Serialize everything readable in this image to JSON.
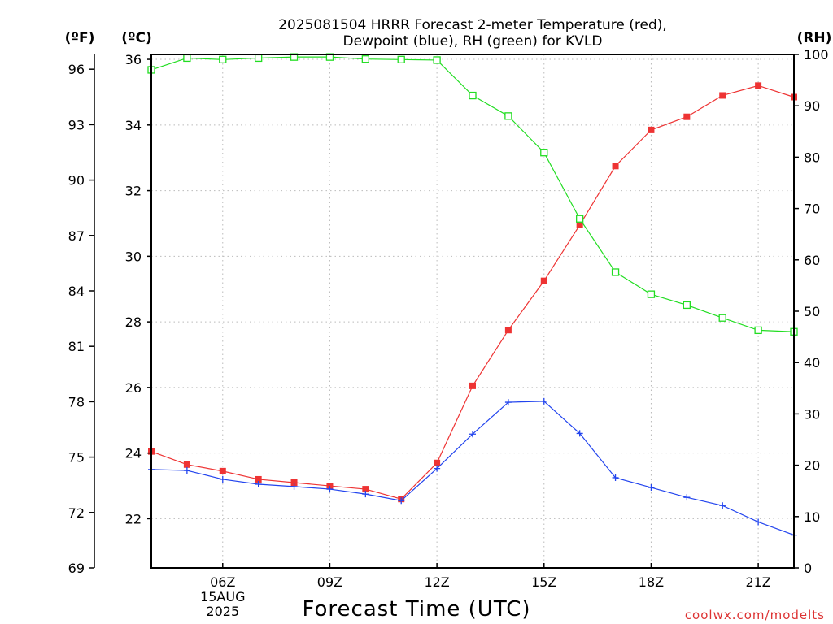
{
  "chart_data": {
    "type": "line",
    "title_line1": "2025081504 HRRR Forecast 2-meter Temperature (red),",
    "title_line2": "Dewpoint (blue), RH (green) for KVLD",
    "xlabel": "Forecast Time (UTC)",
    "credit": "coolwx.com/modelts",
    "colors": {
      "temperature": "#ee3333",
      "dewpoint": "#2244ee",
      "rh": "#22dd22"
    },
    "x": [
      4,
      5,
      6,
      7,
      8,
      9,
      10,
      11,
      12,
      13,
      14,
      15,
      16,
      17,
      18,
      19,
      20,
      21,
      22
    ],
    "xlim": [
      4,
      22
    ],
    "x_ticks": [
      {
        "x": 6,
        "lines": [
          "06Z",
          "15AUG",
          "2025"
        ]
      },
      {
        "x": 9,
        "lines": [
          "09Z"
        ]
      },
      {
        "x": 12,
        "lines": [
          "12Z"
        ]
      },
      {
        "x": 15,
        "lines": [
          "15Z"
        ]
      },
      {
        "x": 18,
        "lines": [
          "18Z"
        ]
      },
      {
        "x": 21,
        "lines": [
          "21Z"
        ]
      }
    ],
    "left_axis_c": {
      "label": "(ºC)",
      "range": [
        20.5,
        36.15
      ],
      "ticks": [
        22,
        24,
        26,
        28,
        30,
        32,
        34,
        36
      ]
    },
    "left_axis_f": {
      "label": "(ºF)",
      "range": [
        69,
        96.8
      ],
      "ticks": [
        69,
        72,
        75,
        78,
        81,
        84,
        87,
        90,
        93,
        96
      ]
    },
    "right_axis_rh": {
      "label": "(RH)",
      "range": [
        0,
        100
      ],
      "ticks": [
        0,
        10,
        20,
        30,
        40,
        50,
        60,
        70,
        80,
        90,
        100
      ]
    },
    "grid": true,
    "series": [
      {
        "key": "temperature",
        "marker": "filled-square",
        "values": [
          24.05,
          23.65,
          23.45,
          23.2,
          23.1,
          23.0,
          22.9,
          22.6,
          23.7,
          26.05,
          27.75,
          29.25,
          30.95,
          32.75,
          33.85,
          34.25,
          34.9,
          35.2,
          34.85
        ]
      },
      {
        "key": "dewpoint",
        "marker": "plus",
        "values": [
          23.5,
          23.47,
          23.2,
          23.05,
          22.98,
          22.9,
          22.75,
          22.55,
          23.53,
          24.58,
          25.55,
          25.58,
          24.6,
          23.25,
          22.95,
          22.65,
          22.4,
          21.9,
          21.5
        ]
      },
      {
        "key": "rh",
        "marker": "open-square",
        "values": [
          97.0,
          99.3,
          99.0,
          99.3,
          99.5,
          99.5,
          99.1,
          99.0,
          98.9,
          92.0,
          88.0,
          80.9,
          68.0,
          57.6,
          53.3,
          51.2,
          48.7,
          46.3,
          46.0
        ]
      }
    ]
  }
}
